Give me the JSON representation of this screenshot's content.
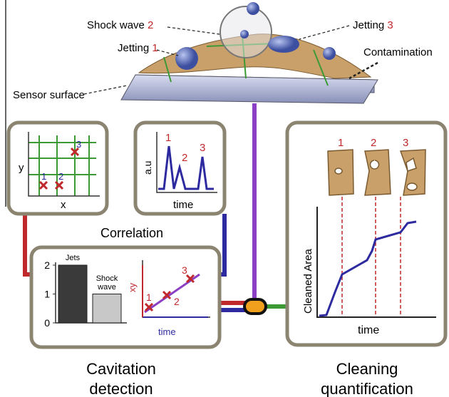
{
  "top_scene": {
    "shock_wave": "Shock wave",
    "shock_wave_num": "2",
    "jetting_left": "Jetting",
    "jetting_left_num": "1",
    "jetting_right": "Jetting",
    "jetting_right_num": "3",
    "contamination": "Contamination",
    "sensor_surface": "Sensor surface"
  },
  "position_panel": {
    "y_label": "y",
    "x_label": "x",
    "points": [
      "1",
      "2",
      "3"
    ]
  },
  "signal_panel": {
    "y_label": "a.u",
    "x_label": "time",
    "peaks": [
      "1",
      "2",
      "3"
    ]
  },
  "correlation": "Correlation",
  "detection_panel": {
    "bar_chart": {
      "type": "bar",
      "categories": [
        "Jets",
        "Shock wave"
      ],
      "values": [
        2,
        1
      ],
      "ylim": [
        0,
        2
      ],
      "yticks": [
        0,
        1,
        2
      ],
      "colors": [
        "#3a3a3a",
        "#c8c8c8"
      ]
    },
    "scatter": {
      "y_label": "xy",
      "x_label": "time",
      "points": [
        "1",
        "2",
        "3"
      ]
    }
  },
  "cavitation_detection": [
    "Cavitation",
    "detection"
  ],
  "cleaning_panel": {
    "images": [
      "1",
      "2",
      "3"
    ],
    "y_label": "Cleaned Area",
    "x_label": "time"
  },
  "cleaning_quantification": [
    "Cleaning",
    "quantification"
  ]
}
